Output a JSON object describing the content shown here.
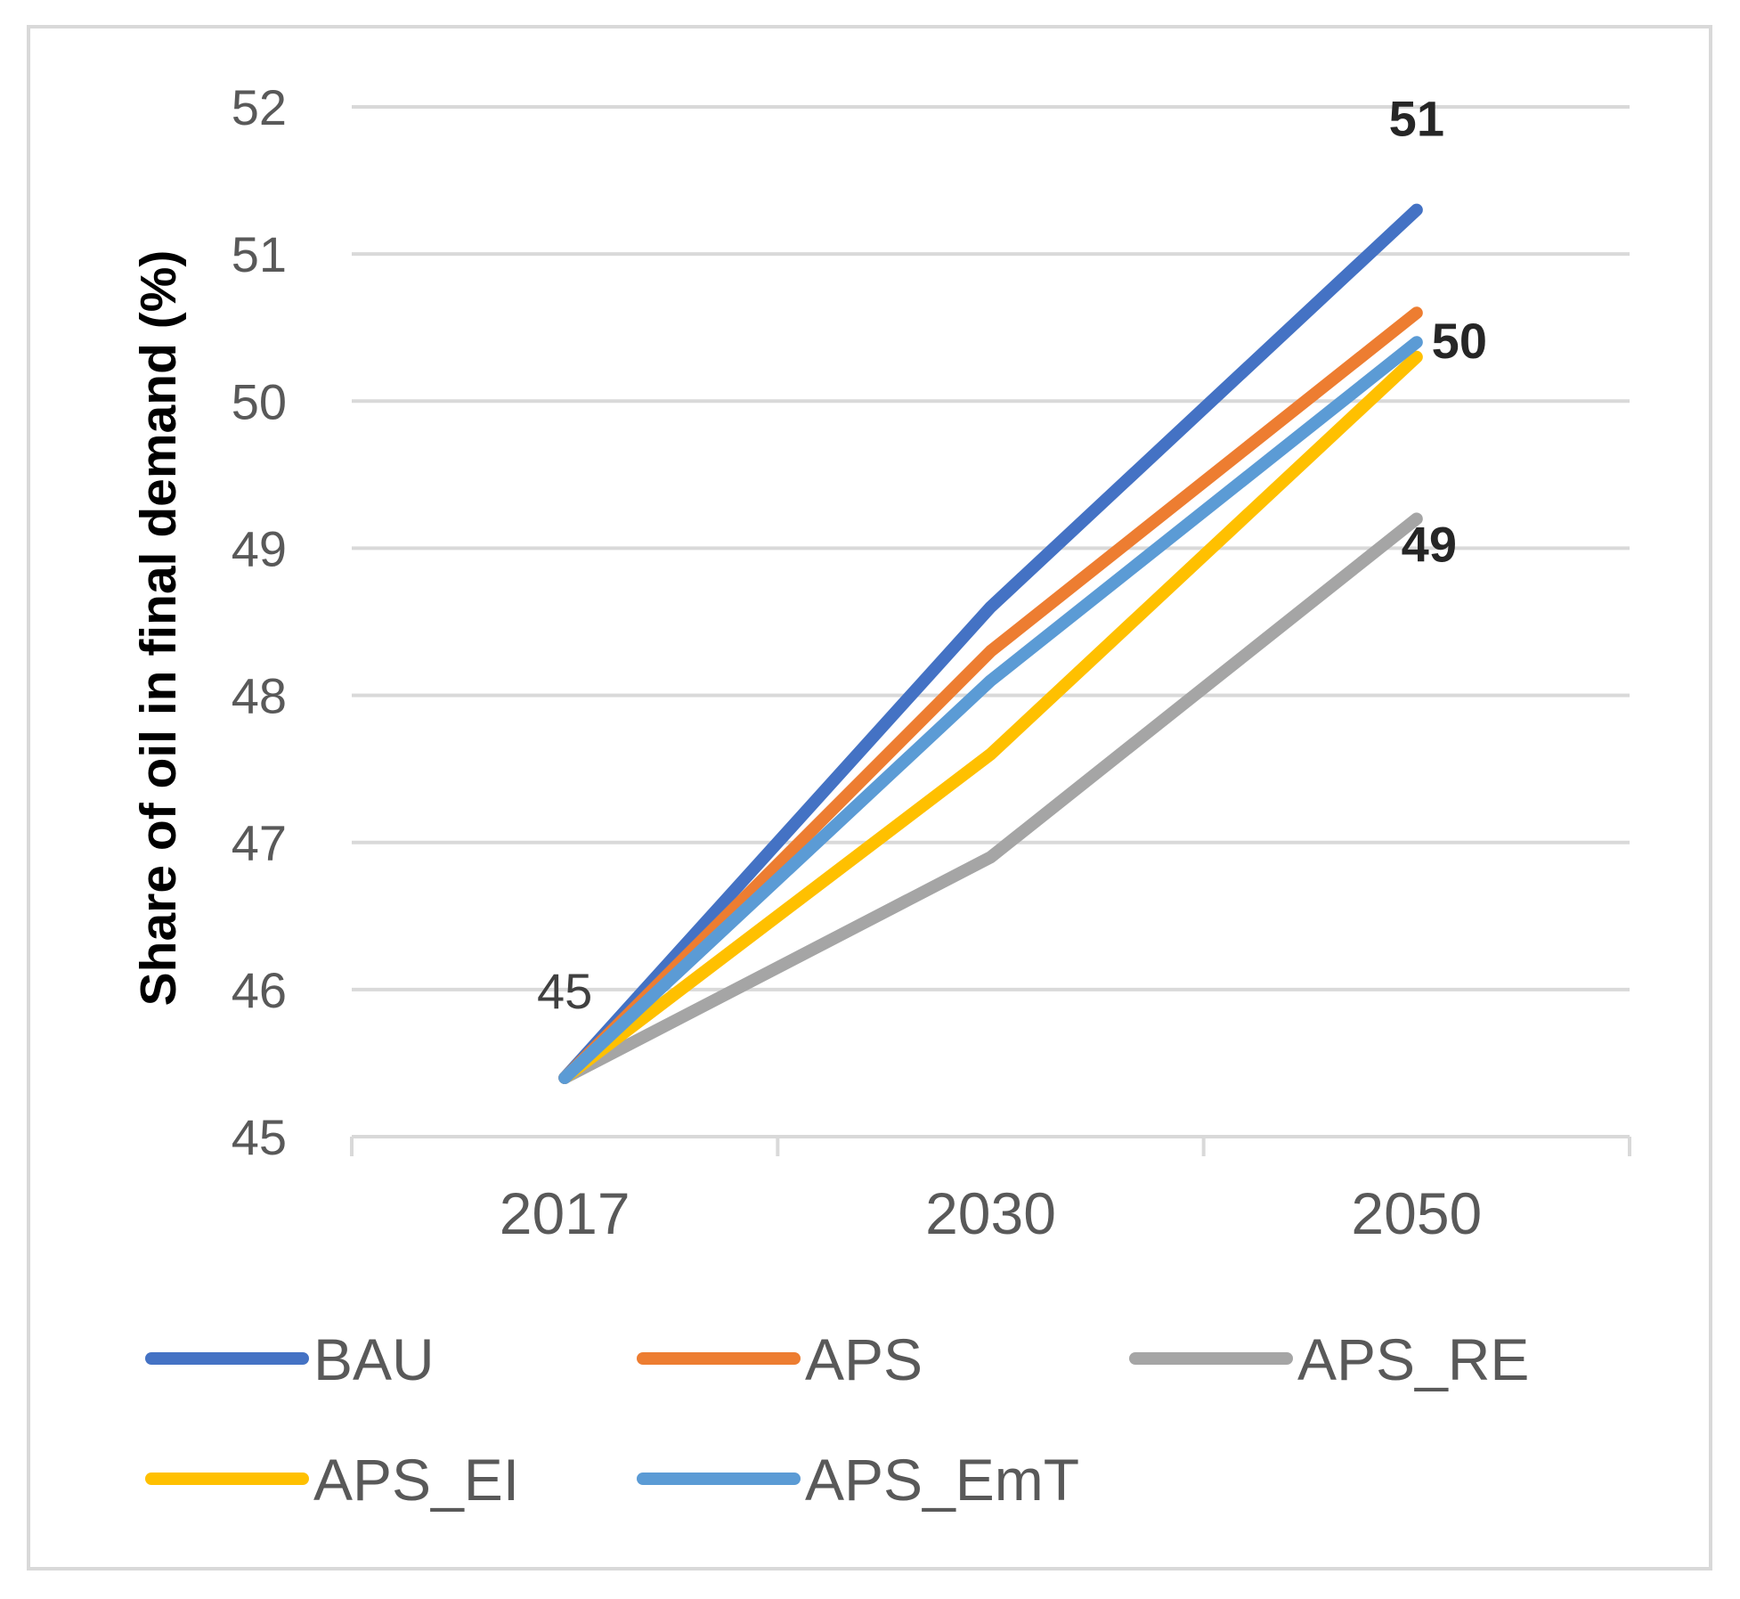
{
  "chart_data": {
    "type": "line",
    "title": "",
    "xlabel": "",
    "ylabel": "Share of oil in final demand (%)",
    "categories": [
      "2017",
      "2030",
      "2050"
    ],
    "yticks": [
      "45",
      "46",
      "47",
      "48",
      "49",
      "50",
      "51",
      "52"
    ],
    "ylim": [
      45,
      52
    ],
    "grid": true,
    "legend_position": "bottom",
    "series": [
      {
        "name": "BAU",
        "color": "#4472C4",
        "values": [
          45.4,
          48.6,
          51.3
        ]
      },
      {
        "name": "APS",
        "color": "#ED7D31",
        "values": [
          45.4,
          48.3,
          50.6
        ]
      },
      {
        "name": "APS_RE",
        "color": "#A5A5A5",
        "values": [
          45.4,
          46.9,
          49.2
        ]
      },
      {
        "name": "APS_EI",
        "color": "#FFC000",
        "values": [
          45.4,
          47.6,
          50.3
        ]
      },
      {
        "name": "APS_EmT",
        "color": "#5B9BD5",
        "values": [
          45.4,
          48.1,
          50.4
        ]
      }
    ],
    "annotations": [
      {
        "text": "45",
        "x": "2017",
        "y": 45.4,
        "bold": false
      },
      {
        "text": "51",
        "x": "2050",
        "y": 51.3,
        "bold": true
      },
      {
        "text": "50",
        "x": "2050",
        "y": 50.4,
        "bold": true
      },
      {
        "text": "49",
        "x": "2050",
        "y": 49.2,
        "bold": true
      }
    ]
  }
}
